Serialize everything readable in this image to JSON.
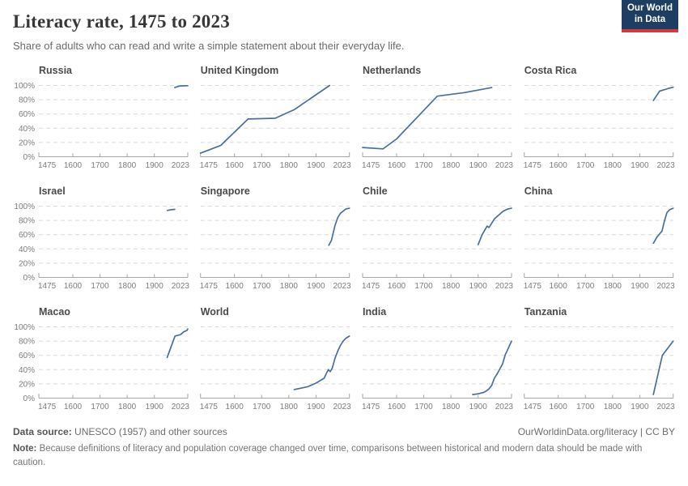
{
  "header": {
    "title": "Literacy rate, 1475 to 2023",
    "subtitle": "Share of adults who can read and write a simple statement about their everyday life.",
    "logo_line1": "Our World",
    "logo_line2": "in Data"
  },
  "chart_data": {
    "type": "line",
    "layout": "small-multiples 3 rows x 4 cols",
    "x_domain": [
      1475,
      2023
    ],
    "y_domain": [
      0,
      100
    ],
    "x_ticks": [
      1475,
      1600,
      1700,
      1800,
      1900,
      2023
    ],
    "y_ticks": [
      0,
      20,
      40,
      60,
      80,
      100
    ],
    "y_tick_suffix": "%",
    "grid": "dashed horizontal gridlines",
    "line_color": "#4a6ea0",
    "gridline_color": "#dadada",
    "axis_color": "#a6a6a6",
    "tick_text_color": "#7d7d7d",
    "panel_title_color": "#4a4a4a",
    "panels": [
      {
        "title": "Russia",
        "points": [
          [
            1975,
            97
          ],
          [
            1982,
            98
          ],
          [
            1995,
            99.3
          ],
          [
            2010,
            99.6
          ],
          [
            2023,
            99.7
          ]
        ]
      },
      {
        "title": "United Kingdom",
        "points": [
          [
            1475,
            5
          ],
          [
            1550,
            16
          ],
          [
            1650,
            53
          ],
          [
            1750,
            54
          ],
          [
            1820,
            66
          ],
          [
            1950,
            100
          ]
        ]
      },
      {
        "title": "Netherlands",
        "points": [
          [
            1475,
            13
          ],
          [
            1550,
            11
          ],
          [
            1600,
            25
          ],
          [
            1700,
            65
          ],
          [
            1750,
            85
          ],
          [
            1850,
            90
          ],
          [
            1950,
            97
          ]
        ]
      },
      {
        "title": "Costa Rica",
        "points": [
          [
            1950,
            79
          ],
          [
            1973,
            92
          ],
          [
            1990,
            94
          ],
          [
            2007,
            96
          ],
          [
            2023,
            97.5
          ]
        ]
      },
      {
        "title": "Israel",
        "points": [
          [
            1948,
            94
          ],
          [
            1961,
            95
          ],
          [
            1975,
            95.5
          ]
        ]
      },
      {
        "title": "Singapore",
        "points": [
          [
            1947,
            45
          ],
          [
            1957,
            52
          ],
          [
            1970,
            73
          ],
          [
            1980,
            84
          ],
          [
            1990,
            90
          ],
          [
            2000,
            93
          ],
          [
            2010,
            96
          ],
          [
            2023,
            97
          ]
        ]
      },
      {
        "title": "Chile",
        "points": [
          [
            1900,
            46
          ],
          [
            1915,
            60
          ],
          [
            1933,
            72
          ],
          [
            1940,
            70
          ],
          [
            1960,
            82
          ],
          [
            1992,
            93
          ],
          [
            2010,
            96
          ],
          [
            2023,
            97
          ]
        ]
      },
      {
        "title": "China",
        "points": [
          [
            1950,
            48
          ],
          [
            1964,
            57
          ],
          [
            1982,
            65
          ],
          [
            1990,
            78
          ],
          [
            2000,
            91
          ],
          [
            2010,
            95
          ],
          [
            2023,
            97
          ]
        ]
      },
      {
        "title": "Macao",
        "points": [
          [
            1947,
            57
          ],
          [
            1976,
            87
          ],
          [
            1996,
            89
          ],
          [
            2008,
            93
          ],
          [
            2020,
            95
          ],
          [
            2023,
            97
          ]
        ]
      },
      {
        "title": "World",
        "points": [
          [
            1820,
            12
          ],
          [
            1870,
            16
          ],
          [
            1900,
            21
          ],
          [
            1930,
            28
          ],
          [
            1940,
            36
          ],
          [
            1946,
            40
          ],
          [
            1952,
            37
          ],
          [
            1960,
            42
          ],
          [
            1970,
            56
          ],
          [
            1980,
            66
          ],
          [
            1990,
            74
          ],
          [
            2000,
            80
          ],
          [
            2010,
            84
          ],
          [
            2023,
            87
          ]
        ]
      },
      {
        "title": "India",
        "points": [
          [
            1880,
            5
          ],
          [
            1900,
            6
          ],
          [
            1910,
            7
          ],
          [
            1920,
            8
          ],
          [
            1930,
            10
          ],
          [
            1940,
            13
          ],
          [
            1950,
            18
          ],
          [
            1960,
            28
          ],
          [
            1970,
            34
          ],
          [
            1980,
            41
          ],
          [
            1990,
            48
          ],
          [
            2000,
            61
          ],
          [
            2010,
            69
          ],
          [
            2023,
            80
          ]
        ]
      },
      {
        "title": "Tanzania",
        "points": [
          [
            1950,
            5
          ],
          [
            1983,
            60
          ],
          [
            2023,
            80
          ]
        ]
      }
    ]
  },
  "footer": {
    "source_label": "Data source:",
    "source_text": " UNESCO (1957) and other sources",
    "link_text": "OurWorldinData.org/literacy | CC BY",
    "note_label": "Note:",
    "note_text": " Because definitions of literacy and population coverage changed over time, comparisons between historical and modern data should be made with caution."
  }
}
